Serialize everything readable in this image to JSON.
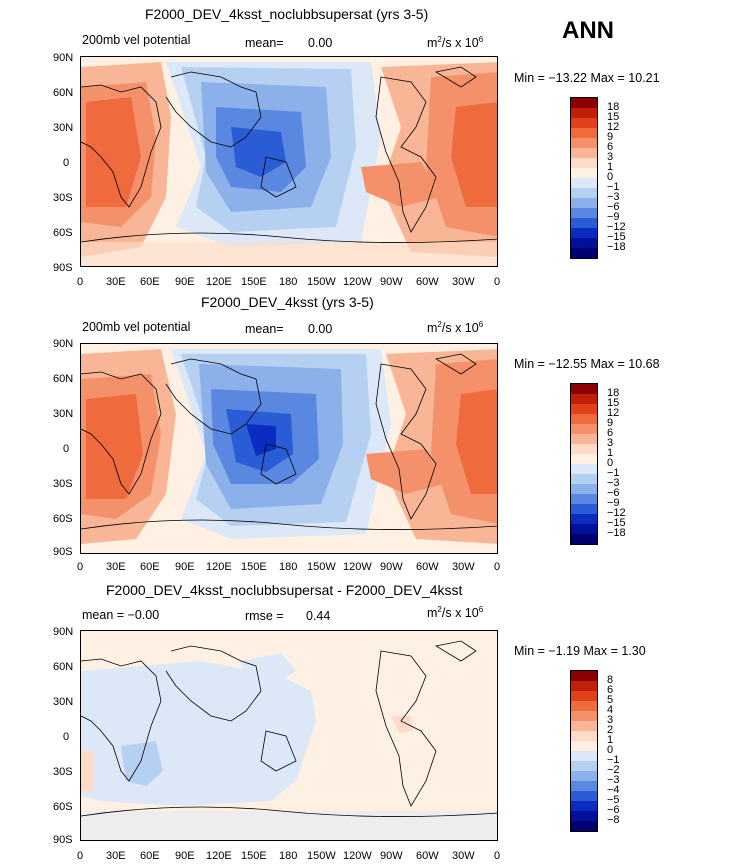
{
  "season": "ANN",
  "lon_ticks": [
    "0",
    "30E",
    "60E",
    "90E",
    "120E",
    "150E",
    "180",
    "150W",
    "120W",
    "90W",
    "60W",
    "30W",
    "0"
  ],
  "lat_ticks": [
    "90N",
    "60N",
    "30N",
    "0",
    "30S",
    "60S",
    "90S"
  ],
  "units": "m",
  "units_tail": "/s x 10",
  "panels": [
    {
      "title": "F2000_DEV_4ksst_noclubbsupersat (yrs 3-5)",
      "left_label": "200mb vel potential",
      "center_label": "mean=",
      "center_value": "0.00",
      "minmax": "Min = −13.22 Max =  10.21",
      "levels": [
        "18",
        "15",
        "12",
        "9",
        "6",
        "3",
        "1",
        "0",
        "−1",
        "−3",
        "−6",
        "−9",
        "−12",
        "−15",
        "−18"
      ],
      "colors": [
        "#8b0000",
        "#c0200a",
        "#e0401a",
        "#ef6a3c",
        "#f4916a",
        "#f8b696",
        "#fcdcc8",
        "#fff0e4",
        "#dce8f8",
        "#b6d0f2",
        "#8cb0ea",
        "#5a88e0",
        "#2a5cd6",
        "#0a2cc0",
        "#00109a",
        "#000070"
      ]
    },
    {
      "title": "F2000_DEV_4ksst (yrs 3-5)",
      "left_label": "200mb vel potential",
      "center_label": "mean=",
      "center_value": "0.00",
      "minmax": "Min = −12.55 Max =  10.68",
      "levels": [
        "18",
        "15",
        "12",
        "9",
        "6",
        "3",
        "1",
        "0",
        "−1",
        "−3",
        "−6",
        "−9",
        "−12",
        "−15",
        "−18"
      ],
      "colors": [
        "#8b0000",
        "#c0200a",
        "#e0401a",
        "#ef6a3c",
        "#f4916a",
        "#f8b696",
        "#fcdcc8",
        "#fff0e4",
        "#dce8f8",
        "#b6d0f2",
        "#8cb0ea",
        "#5a88e0",
        "#2a5cd6",
        "#0a2cc0",
        "#00109a",
        "#000070"
      ]
    },
    {
      "title": "F2000_DEV_4ksst_noclubbsupersat - F2000_DEV_4ksst",
      "left_label": "mean =   −0.00",
      "center_label": "rmse =",
      "center_value": "0.44",
      "minmax": "Min =  −1.19 Max =   1.30",
      "levels": [
        "8",
        "6",
        "5",
        "4",
        "3",
        "2",
        "1",
        "0",
        "−1",
        "−2",
        "−3",
        "−4",
        "−5",
        "−6",
        "−8"
      ],
      "colors": [
        "#8b0000",
        "#c0200a",
        "#e0401a",
        "#ef6a3c",
        "#f4916a",
        "#f8b696",
        "#fcdcc8",
        "#fff0e4",
        "#dce8f8",
        "#b6d0f2",
        "#8cb0ea",
        "#5a88e0",
        "#2a5cd6",
        "#0a2cc0",
        "#00109a",
        "#000070"
      ]
    }
  ]
}
